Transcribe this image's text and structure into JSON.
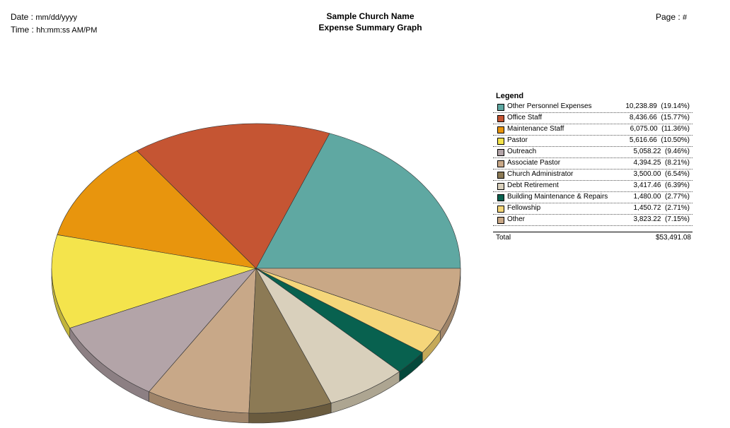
{
  "header": {
    "date_label": "Date :",
    "date_value": "mm/dd/yyyy",
    "time_label": "Time :",
    "time_value": "hh:mm:ss AM/PM",
    "church_name": "Sample Church Name",
    "report_title": "Expense Summary Graph",
    "page_label": "Page :",
    "page_value": "#"
  },
  "legend": {
    "title": "Legend",
    "items": [
      {
        "label": "Other Personnel Expenses",
        "value": "10,238.89",
        "pct": "(19.14%)"
      },
      {
        "label": "Office Staff",
        "value": "8,436.66",
        "pct": "(15.77%)"
      },
      {
        "label": "Maintenance Staff",
        "value": "6,075.00",
        "pct": "(11.36%)"
      },
      {
        "label": "Pastor",
        "value": "5,616.66",
        "pct": "(10.50%)"
      },
      {
        "label": "Outreach",
        "value": "5,058.22",
        "pct": "(9.46%)"
      },
      {
        "label": "Associate Pastor",
        "value": "4,394.25",
        "pct": "(8.21%)"
      },
      {
        "label": "Church Administrator",
        "value": "3,500.00",
        "pct": "(6.54%)"
      },
      {
        "label": "Debt Retirement",
        "value": "3,417.46",
        "pct": "(6.39%)"
      },
      {
        "label": "Building Maintenance & Repairs",
        "value": "1,480.00",
        "pct": "(2.77%)"
      },
      {
        "label": "Fellowship",
        "value": "1,450.72",
        "pct": "(2.71%)"
      },
      {
        "label": "Other",
        "value": "3,823.22",
        "pct": "(7.15%)"
      }
    ],
    "total_label": "Total",
    "total_value": "$53,491.08"
  },
  "chart_data": {
    "type": "pie",
    "title": "Expense Summary Graph",
    "categories": [
      "Other Personnel Expenses",
      "Office Staff",
      "Maintenance Staff",
      "Pastor",
      "Outreach",
      "Associate Pastor",
      "Church Administrator",
      "Debt Retirement",
      "Building Maintenance & Repairs",
      "Fellowship",
      "Other"
    ],
    "values": [
      10238.89,
      8436.66,
      6075.0,
      5616.66,
      5058.22,
      4394.25,
      3500.0,
      3417.46,
      1480.0,
      1450.72,
      3823.22
    ],
    "colors": [
      "#5fa8a2",
      "#c55533",
      "#e8950d",
      "#f4e44c",
      "#b3a4a8",
      "#c8a888",
      "#8c7a55",
      "#d9d0bc",
      "#08614f",
      "#f5d67a",
      "#c9a886"
    ],
    "side_colors": [
      "#4a8783",
      "#9c4127",
      "#b6750a",
      "#c2b43a",
      "#8c7f83",
      "#9f8469",
      "#6a5b3e",
      "#ada591",
      "#05483b",
      "#c5a958",
      "#a0856a"
    ],
    "legend_position": "right"
  }
}
